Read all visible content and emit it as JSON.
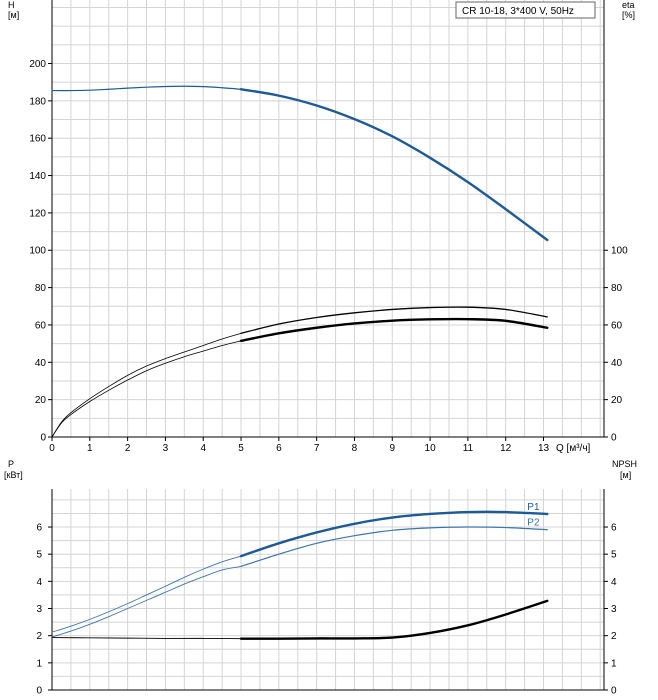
{
  "colors": {
    "blue": "#1c5a99",
    "blue_light": "#3c74b0",
    "black": "#000000",
    "grid": "#d4d4d4",
    "axis": "#000000"
  },
  "chart_data": [
    {
      "id": "top",
      "type": "line",
      "title": "CR 10-18, 3*400 V, 50Hz",
      "x_unit_label": "Q [м³/ч]",
      "xlim": [
        0,
        14.6
      ],
      "x_ticks": [
        0,
        1,
        2,
        3,
        4,
        5,
        6,
        7,
        8,
        9,
        10,
        11,
        12,
        13
      ],
      "left_axis": {
        "label_line1": "H",
        "label_line2": "[м]",
        "lim": [
          0,
          234
        ],
        "ticks": [
          0,
          20,
          40,
          60,
          80,
          100,
          120,
          140,
          160,
          180,
          200
        ]
      },
      "right_axis": {
        "label_line1": "eta",
        "label_line2": "[%]",
        "lim": [
          0,
          234
        ],
        "ticks": [
          0,
          20,
          40,
          60,
          80,
          100
        ]
      },
      "series": [
        {
          "key": "H_thin",
          "axis": "left",
          "color": "blue",
          "width": 1.2,
          "x": [
            0,
            0.5,
            1,
            1.5,
            2,
            2.5,
            3,
            3.5,
            4,
            4.5,
            5
          ],
          "y": [
            185.5,
            185.5,
            185.7,
            186.2,
            186.8,
            187.3,
            187.7,
            187.8,
            187.6,
            187.0,
            186.2
          ]
        },
        {
          "key": "H",
          "axis": "left",
          "color": "blue",
          "width": 2.4,
          "x": [
            5,
            6,
            7,
            8,
            9,
            10,
            11,
            12,
            13.1
          ],
          "y": [
            186.2,
            182.8,
            177.5,
            170.2,
            161.0,
            149.5,
            136.5,
            122.0,
            105.5
          ]
        },
        {
          "key": "eta_upper_thin",
          "axis": "right",
          "color": "black",
          "width": 0.8,
          "x": [
            0,
            0.25,
            0.5,
            1,
            1.5,
            2,
            2.5,
            3,
            3.5,
            4,
            4.5,
            5
          ],
          "y": [
            0,
            8,
            13,
            20.5,
            27,
            33,
            38,
            42,
            45.5,
            49,
            52.5,
            55.5
          ]
        },
        {
          "key": "eta_upper",
          "axis": "right",
          "color": "black",
          "width": 1.3,
          "x": [
            5,
            6,
            7,
            8,
            9,
            10,
            11,
            12,
            13.1
          ],
          "y": [
            55.5,
            60.5,
            64,
            66.5,
            68.3,
            69.3,
            69.5,
            68.3,
            64.3
          ]
        },
        {
          "key": "eta_lower_thin",
          "axis": "right",
          "color": "black",
          "width": 0.8,
          "x": [
            0,
            0.25,
            0.5,
            1,
            1.5,
            2,
            2.5,
            3,
            3.5,
            4,
            4.5,
            5
          ],
          "y": [
            0,
            7.5,
            12,
            19,
            25,
            30.5,
            35.5,
            39.5,
            43,
            46,
            49,
            51.5
          ]
        },
        {
          "key": "eta_lower",
          "axis": "right",
          "color": "black",
          "width": 2.4,
          "x": [
            5,
            6,
            7,
            8,
            9,
            10,
            11,
            12,
            13.1
          ],
          "y": [
            51.5,
            55.5,
            58.5,
            60.8,
            62.3,
            63,
            63.1,
            62.2,
            58.5
          ]
        }
      ]
    },
    {
      "id": "bottom",
      "type": "line",
      "xlim": [
        0,
        14.6
      ],
      "left_axis": {
        "label_line1": "P",
        "label_line2": "[кВт]",
        "lim": [
          0,
          7.4
        ],
        "ticks": [
          0,
          1,
          2,
          3,
          4,
          5,
          6
        ]
      },
      "right_axis": {
        "label_line1": "NPSH",
        "label_line2": "[м]",
        "lim": [
          0,
          7.4
        ],
        "ticks": [
          0,
          1,
          2,
          3,
          4,
          5,
          6
        ]
      },
      "series": [
        {
          "key": "P1_thin",
          "axis": "left",
          "color": "blue_light",
          "width": 0.9,
          "x": [
            0,
            0.5,
            1,
            1.5,
            2,
            2.5,
            3,
            3.5,
            4,
            4.5,
            5
          ],
          "y": [
            2.13,
            2.35,
            2.6,
            2.88,
            3.18,
            3.5,
            3.82,
            4.15,
            4.45,
            4.72,
            4.93
          ]
        },
        {
          "key": "P1",
          "axis": "left",
          "color": "blue",
          "width": 2.4,
          "x": [
            5,
            6,
            7,
            8,
            9,
            10,
            11,
            12,
            13.1
          ],
          "y": [
            4.93,
            5.4,
            5.8,
            6.12,
            6.35,
            6.48,
            6.55,
            6.55,
            6.48
          ],
          "label": "P1"
        },
        {
          "key": "P2_thin",
          "axis": "left",
          "color": "blue_light",
          "width": 0.9,
          "x": [
            0,
            0.5,
            1,
            1.5,
            2,
            2.5,
            3,
            3.5,
            4,
            4.5,
            5
          ],
          "y": [
            1.95,
            2.17,
            2.42,
            2.7,
            3.0,
            3.3,
            3.6,
            3.9,
            4.17,
            4.42,
            4.55
          ]
        },
        {
          "key": "P2",
          "axis": "left",
          "color": "blue_light",
          "width": 1.2,
          "x": [
            5,
            6,
            7,
            8,
            9,
            10,
            11,
            12,
            13.1
          ],
          "y": [
            4.55,
            5.0,
            5.4,
            5.68,
            5.88,
            5.97,
            6.0,
            5.98,
            5.9
          ],
          "label": "P2"
        },
        {
          "key": "NPSH_thin",
          "axis": "right",
          "color": "black",
          "width": 0.9,
          "x": [
            0,
            1,
            2,
            3,
            4,
            5
          ],
          "y": [
            1.93,
            1.92,
            1.91,
            1.9,
            1.9,
            1.89
          ]
        },
        {
          "key": "NPSH",
          "axis": "right",
          "color": "black",
          "width": 2.4,
          "x": [
            5,
            6,
            7,
            8,
            9,
            10,
            11,
            12,
            13.1
          ],
          "y": [
            1.89,
            1.89,
            1.9,
            1.9,
            1.93,
            2.1,
            2.38,
            2.78,
            3.28
          ]
        }
      ]
    }
  ]
}
